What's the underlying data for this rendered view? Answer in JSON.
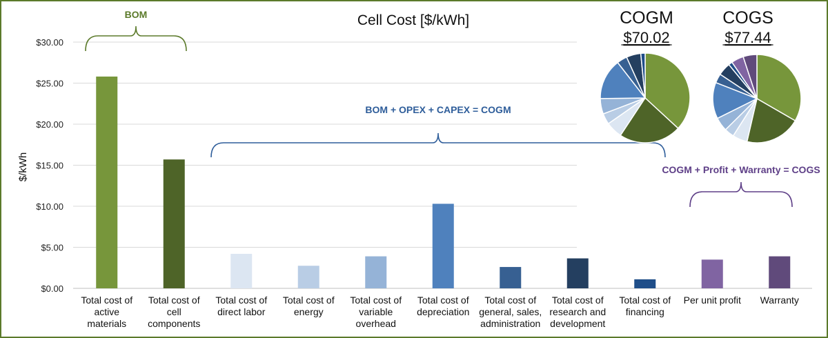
{
  "chart_data": {
    "type": "bar",
    "title": "Cell Cost [$/kWh]",
    "ylabel": "$/kWh",
    "xlabel": "",
    "ylim": [
      0,
      30
    ],
    "yticks": [
      "$0.00",
      "$5.00",
      "$10.00",
      "$15.00",
      "$20.00",
      "$25.00",
      "$30.00"
    ],
    "grid": true,
    "categories": [
      [
        "Total cost of",
        "active",
        "materials"
      ],
      [
        "Total cost of",
        "cell",
        "components"
      ],
      [
        "Total cost of",
        "direct labor"
      ],
      [
        "Total cost of",
        "energy"
      ],
      [
        "Total cost of",
        "variable",
        "overhead"
      ],
      [
        "Total cost of",
        "depreciation"
      ],
      [
        "Total cost of",
        "general, sales,",
        "administration"
      ],
      [
        "Total cost of",
        "research and",
        "development"
      ],
      [
        "Total cost of",
        "financing"
      ],
      [
        "Per unit profit"
      ],
      [
        "Warranty"
      ]
    ],
    "values": [
      25.8,
      15.7,
      4.2,
      2.75,
      3.9,
      10.3,
      2.6,
      3.65,
      1.1,
      3.5,
      3.9
    ],
    "colors": [
      "#77963b",
      "#4e6428",
      "#dce6f2",
      "#b9cde5",
      "#95b3d7",
      "#4f81bd",
      "#376092",
      "#243f60",
      "#1f4e89",
      "#8064a2",
      "#604a7b"
    ],
    "annotations": [
      {
        "text": "BOM",
        "color": "#5b7a2a"
      },
      {
        "text": "BOM + OPEX + CAPEX = COGM",
        "color": "#2e5d9a"
      },
      {
        "text": "COGM + Profit + Warranty = COGS",
        "color": "#5e3f87"
      }
    ],
    "pies": [
      {
        "title": "COGM",
        "total": "$70.02",
        "slices": [
          25.8,
          15.7,
          4.2,
          2.75,
          3.9,
          10.3,
          2.6,
          3.65,
          1.1
        ]
      },
      {
        "title": "COGS",
        "total": "$77.44",
        "slices": [
          25.8,
          15.7,
          4.2,
          2.75,
          3.9,
          10.3,
          2.6,
          3.65,
          1.1,
          3.5,
          3.9
        ]
      }
    ]
  }
}
